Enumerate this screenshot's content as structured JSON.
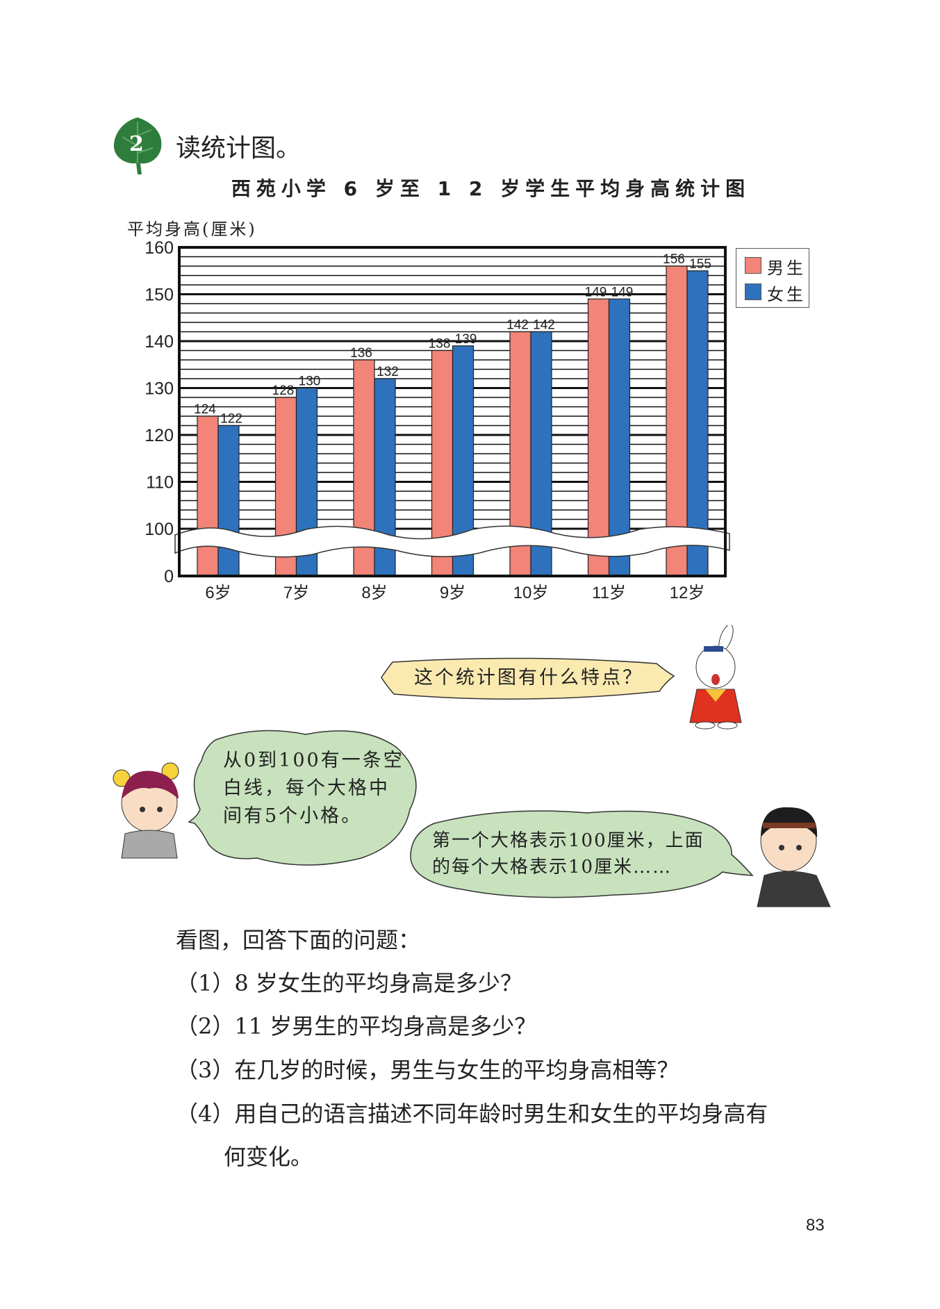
{
  "exercise": {
    "number": "2",
    "heading": "读统计图。"
  },
  "legend": {
    "male_color": "#f28478",
    "female_color": "#2e72bd"
  },
  "chart_data": {
    "type": "bar",
    "title": "西苑小学 6 岁至 1 2 岁学生平均身高统计图",
    "ylabel": "平均身高(厘米)",
    "xlabel": "",
    "categories": [
      "6岁",
      "7岁",
      "8岁",
      "9岁",
      "10岁",
      "11岁",
      "12岁"
    ],
    "series": [
      {
        "name": "男生",
        "color": "#f28478",
        "values": [
          124,
          128,
          136,
          138,
          142,
          149,
          156
        ]
      },
      {
        "name": "女生",
        "color": "#2e72bd",
        "values": [
          122,
          130,
          132,
          139,
          142,
          149,
          155
        ]
      }
    ],
    "yticks": [
      "160",
      "150",
      "140",
      "130",
      "120",
      "110",
      "100",
      "0"
    ],
    "ylim": [
      0,
      160
    ],
    "axis_break": [
      0,
      100
    ],
    "grid": true,
    "minor_grid_step": 2,
    "legend_position": "right-top"
  },
  "bubbles": {
    "rabbit": "这个统计图有什么特点？",
    "girl": [
      "从0到100有一条空",
      "白线，每个大格中",
      "间有5个小格。"
    ],
    "boy": [
      "第一个大格表示100厘米，上面",
      "的每个大格表示10厘米……"
    ]
  },
  "questions": {
    "intro": "看图，回答下面的问题：",
    "items": [
      "（1）8 岁女生的平均身高是多少？",
      "（2）11 岁男生的平均身高是多少？",
      "（3）在几岁的时候，男生与女生的平均身高相等？",
      "（4）用自己的语言描述不同年龄时男生和女生的平均身高有"
    ],
    "continuation": "何变化。"
  },
  "page_number": "83"
}
